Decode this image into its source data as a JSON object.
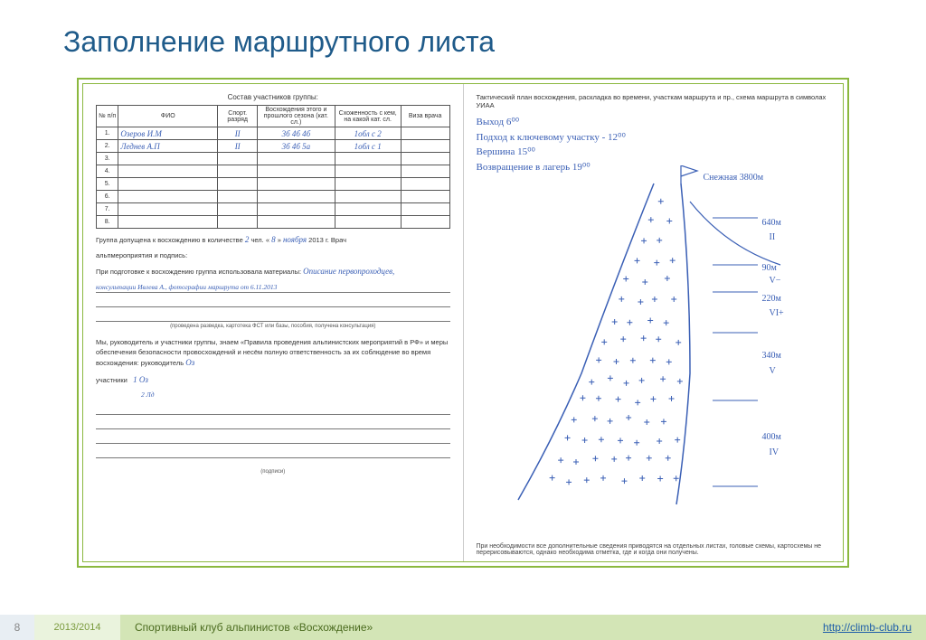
{
  "title": "Заполнение маршрутного листа",
  "roster": {
    "caption": "Состав участников группы:",
    "headers": [
      "№ п/п",
      "ФИО",
      "Спорт. разряд",
      "Восхождения этого и прошлого сезона (кат. сл.)",
      "Схоженность с кем, на какой кат. сл.",
      "Виза врача"
    ],
    "rows": [
      {
        "n": "1.",
        "fio": "Озеров И.М",
        "rank": "II",
        "asc": "3б 4б 4б",
        "sch": "1обл с 2",
        "visa": ""
      },
      {
        "n": "2.",
        "fio": "Леднев А.П",
        "rank": "II",
        "asc": "3б 4б 5а",
        "sch": "1обл с 1",
        "visa": ""
      },
      {
        "n": "3.",
        "fio": "",
        "rank": "",
        "asc": "",
        "sch": "",
        "visa": ""
      },
      {
        "n": "4.",
        "fio": "",
        "rank": "",
        "asc": "",
        "sch": "",
        "visa": ""
      },
      {
        "n": "5.",
        "fio": "",
        "rank": "",
        "asc": "",
        "sch": "",
        "visa": ""
      },
      {
        "n": "6.",
        "fio": "",
        "rank": "",
        "asc": "",
        "sch": "",
        "visa": ""
      },
      {
        "n": "7.",
        "fio": "",
        "rank": "",
        "asc": "",
        "sch": "",
        "visa": ""
      },
      {
        "n": "8.",
        "fio": "",
        "rank": "",
        "asc": "",
        "sch": "",
        "visa": ""
      }
    ]
  },
  "form": {
    "admit_line_pre": "Группа допущена к восхождению в количестве",
    "admit_count": "2",
    "admit_mid": "чел. «",
    "admit_date_d": "8",
    "admit_mid2": "»",
    "admit_date_m": "ноября",
    "admit_year": "2013 г. Врач",
    "line2": "альпмероприятия и подпись:",
    "prep_pre": "При подготовке к восхождению группа использовала материалы:",
    "prep_hand1": "Описание первопроходцев,",
    "prep_hand2": "консультации Ивлева А., фотографии маршрута от 6.11.2013",
    "caption_small": "(проведена разведка, картотека ФСТ или базы, пособия, получена консультация)",
    "resp_text": "Мы, руководитель и участники группы, знаем «Правила проведения альпинистских мероприятий в РФ» и меры обеспечения безопасности провосхождений и несём полную ответственность за их соблюдение во время восхождения: руководитель",
    "sign_leader": "Оз",
    "members_label": "участники",
    "sign_m1": "1 Оз",
    "sign_m2": "2 Лд",
    "podpis_caption": "(подписи)"
  },
  "plan": {
    "caption": "Тактический план восхождения, раскладка во времени, участкам маршрута и пр., схема маршрута в символах УИАА",
    "notes": [
      "Выход 6⁰⁰",
      "Подход к ключевому участку - 12⁰⁰",
      "Вершина 15⁰⁰",
      "Возвращение в лагерь 19⁰⁰"
    ],
    "peak_label": "Снежная 3800м",
    "segments": [
      {
        "len": "640м",
        "grade": "II"
      },
      {
        "len": "90м",
        "grade": "V−"
      },
      {
        "len": "220м",
        "grade": "VI+"
      },
      {
        "len": "340м",
        "grade": "V"
      },
      {
        "len": "400м",
        "grade": "IV"
      }
    ],
    "footer": "При необходимости все дополнительные сведения приводятся на отдельных листах, головые схемы, картосхемы не перерисовываются, однако необходима отметка, где и когда они получены."
  },
  "footer": {
    "page": "8",
    "year": "2013/2014",
    "club": "Спортивный клуб альпинистов «Восхождение»",
    "url": "http://climb-club.ru"
  },
  "colors": {
    "title": "#1f5b8a",
    "frame": "#8bb83f",
    "hand": "#3a5fb5",
    "bar_mid": "#d3e5b6",
    "bar_year": "#eaf3dd"
  }
}
